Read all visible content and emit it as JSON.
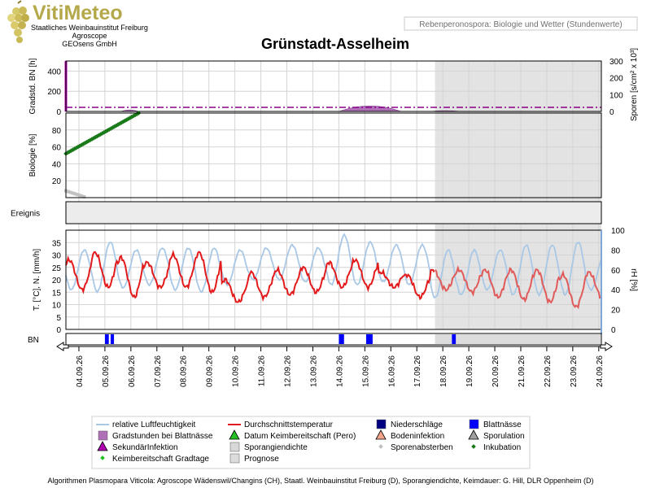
{
  "header": {
    "logo_text": "VitiMeteo",
    "institute": "Staatliches Weinbauinstitut Freiburg",
    "partner1": "Agroscope",
    "partner2": "GEOsens GmbH",
    "subtitle": "Rebenperonospora: Biologie und Wetter (Stundenwerte)",
    "title": "Grünstadt-Asselheim"
  },
  "footer_text": "Algorithmen Plasmopara Viticola: Agroscope Wädenswil/Changins (CH), Staatl. Weinbauinstitut Freiburg (D), Sporangiendichte, Keimdauer: G. Hill, DLR Oppenheim (D)",
  "legend": [
    {
      "label": "relative Luftfeuchtigkeit",
      "symbol": "line",
      "color": "#a8c8e6"
    },
    {
      "label": "Durchschnittstemperatur",
      "symbol": "line",
      "color": "#e31a1c"
    },
    {
      "label": "Niederschläge",
      "symbol": "square",
      "color": "#000080"
    },
    {
      "label": "Blattnässe",
      "symbol": "square",
      "color": "#0000ff"
    },
    {
      "label": "Gradstunden bei Blattnässe",
      "symbol": "square",
      "color": "#b070b8"
    },
    {
      "label": "Datum Keimbereitschaft (Pero)",
      "symbol": "triangle",
      "color": "#22c022"
    },
    {
      "label": "Bodeninfektion",
      "symbol": "triangle",
      "color": "#f2a48a"
    },
    {
      "label": "Sporulation",
      "symbol": "triangle",
      "color": "#a0a0a0"
    },
    {
      "label": "SekundärInfektion",
      "symbol": "triangle",
      "color": "#b000b0"
    },
    {
      "label": "Sporangiendichte",
      "symbol": "square",
      "color": "#d8d8d8"
    },
    {
      "label": "Sporenabsterben",
      "symbol": "diamond",
      "color": "#c0c0c0"
    },
    {
      "label": "Inkubation",
      "symbol": "diamond",
      "color": "#1a7a1a"
    },
    {
      "label": "Keimbereitschaft Gradtage",
      "symbol": "diamond",
      "color": "#22c022"
    },
    {
      "label": "Prognose",
      "symbol": "square",
      "color": "#dcdcdc"
    }
  ],
  "chart_data": {
    "type": "line",
    "x_ticks": [
      "04.09.26",
      "05.09.26",
      "06.09.26",
      "07.09.26",
      "08.09.26",
      "09.09.26",
      "10.09.26",
      "11.09.26",
      "12.09.26",
      "13.09.26",
      "14.09.26",
      "15.09.26",
      "16.09.26",
      "17.09.26",
      "18.09.26",
      "19.09.26",
      "20.09.26",
      "21.09.26",
      "22.09.26",
      "23.09.26",
      "24.09.26"
    ],
    "x_range_days": [
      3.5,
      24.1
    ],
    "forecast_start_day": 17.7,
    "panels": {
      "gradstunden": {
        "ylabel_left": "Gradstd. BN [h]",
        "ylabel_right": "Sporen [s/cm² x 10³]",
        "yticks_left": [
          0,
          200,
          400
        ],
        "yticks_right": [
          0,
          100,
          200,
          300
        ],
        "ylim_left": [
          0,
          500
        ],
        "ylim_right": [
          0,
          300
        ],
        "threshold_left": 40,
        "gradstunden_peaks": [
          {
            "start": 5.6,
            "end": 6.3,
            "peak": 15
          },
          {
            "start": 14.0,
            "end": 16.4,
            "peak": 55
          },
          {
            "start": 17.5,
            "end": 18.7,
            "peak": 8
          }
        ]
      },
      "biologie": {
        "ylabel": "Biologie [%]",
        "yticks": [
          20,
          40,
          60,
          80
        ],
        "ylim": [
          0,
          100
        ],
        "inkubation": {
          "day_start": 3.5,
          "day_end": 6.3,
          "value_start": 52,
          "value_end": 100
        },
        "sporangiendichte": {
          "day_start": 3.5,
          "day_end": 4.2,
          "value_start": 8,
          "value_end": 1
        }
      },
      "ereignis": {
        "label": "Ereignis"
      },
      "weather": {
        "ylabel_left": "T. [°C], N. [mm/h]",
        "ylabel_right": "rH [%]",
        "yticks_left": [
          0,
          5,
          10,
          15,
          20,
          25,
          30,
          35
        ],
        "yticks_right": [
          0,
          20,
          40,
          60,
          80,
          100
        ],
        "ylim_left": [
          0,
          40
        ],
        "ylim_right": [
          0,
          100
        ],
        "temperature_daily": [
          {
            "day": 4,
            "min": 16,
            "max": 28
          },
          {
            "day": 5,
            "min": 17,
            "max": 31
          },
          {
            "day": 6,
            "min": 13,
            "max": 29
          },
          {
            "day": 7,
            "min": 17,
            "max": 27
          },
          {
            "day": 8,
            "min": 17,
            "max": 30
          },
          {
            "day": 9,
            "min": 15,
            "max": 31
          },
          {
            "day": 10,
            "min": 11,
            "max": 20
          },
          {
            "day": 11,
            "min": 13,
            "max": 23
          },
          {
            "day": 12,
            "min": 14,
            "max": 24
          },
          {
            "day": 13,
            "min": 15,
            "max": 25
          },
          {
            "day": 14,
            "min": 17,
            "max": 27
          },
          {
            "day": 15,
            "min": 17,
            "max": 28
          },
          {
            "day": 16,
            "min": 17,
            "max": 23
          },
          {
            "day": 17,
            "min": 13,
            "max": 22
          },
          {
            "day": 18,
            "min": 16,
            "max": 24
          },
          {
            "day": 19,
            "min": 15,
            "max": 24
          },
          {
            "day": 20,
            "min": 13,
            "max": 24
          },
          {
            "day": 21,
            "min": 12,
            "max": 24
          },
          {
            "day": 22,
            "min": 11,
            "max": 24
          },
          {
            "day": 23,
            "min": 9,
            "max": 22
          },
          {
            "day": 24,
            "min": 13,
            "max": 23
          }
        ],
        "humidity_daily": [
          {
            "day": 4,
            "min": 40,
            "max": 80
          },
          {
            "day": 5,
            "min": 38,
            "max": 88
          },
          {
            "day": 6,
            "min": 42,
            "max": 80
          },
          {
            "day": 7,
            "min": 45,
            "max": 82
          },
          {
            "day": 8,
            "min": 40,
            "max": 82
          },
          {
            "day": 9,
            "min": 38,
            "max": 82
          },
          {
            "day": 10,
            "min": 45,
            "max": 80
          },
          {
            "day": 11,
            "min": 50,
            "max": 82
          },
          {
            "day": 12,
            "min": 50,
            "max": 85
          },
          {
            "day": 13,
            "min": 48,
            "max": 82
          },
          {
            "day": 14,
            "min": 45,
            "max": 95
          },
          {
            "day": 15,
            "min": 45,
            "max": 88
          },
          {
            "day": 16,
            "min": 48,
            "max": 85
          },
          {
            "day": 17,
            "min": 45,
            "max": 85
          },
          {
            "day": 18,
            "min": 32,
            "max": 80
          },
          {
            "day": 19,
            "min": 35,
            "max": 80
          },
          {
            "day": 20,
            "min": 40,
            "max": 80
          },
          {
            "day": 21,
            "min": 35,
            "max": 85
          },
          {
            "day": 22,
            "min": 35,
            "max": 85
          },
          {
            "day": 23,
            "min": 35,
            "max": 88
          },
          {
            "day": 24,
            "min": 40,
            "max": 75
          }
        ]
      },
      "blattnaesse": {
        "label": "BN",
        "segments": [
          {
            "start": 5.0,
            "end": 5.15
          },
          {
            "start": 5.22,
            "end": 5.35
          },
          {
            "start": 14.0,
            "end": 14.2
          },
          {
            "start": 15.05,
            "end": 15.3
          },
          {
            "start": 18.35,
            "end": 18.5
          }
        ]
      }
    }
  }
}
